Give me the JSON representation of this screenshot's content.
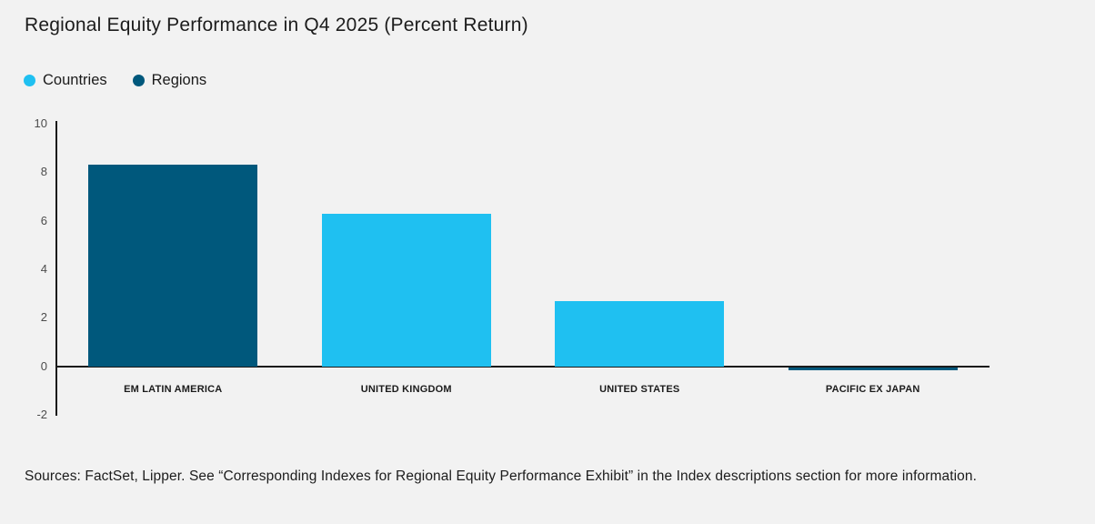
{
  "page": {
    "background_color": "#f2f2f2"
  },
  "header": {
    "title": "Regional Equity Performance in Q4 2025 (Percent Return)"
  },
  "legend": [
    {
      "label": "Countries",
      "color": "#1fc0f1"
    },
    {
      "label": "Regions",
      "color": "#00587c"
    }
  ],
  "chart_data": {
    "type": "bar",
    "title": "Regional Equity Performance in Q4 2025 (Percent Return)",
    "categories": [
      "EM LATIN AMERICA",
      "UNITED KINGDOM",
      "UNITED STATES",
      "PACIFIC EX JAPAN"
    ],
    "values": [
      8.3,
      6.3,
      2.7,
      -0.1
    ],
    "series_membership": [
      "Regions",
      "Countries",
      "Countries",
      "Regions"
    ],
    "bar_colors": [
      "#00587c",
      "#1fc0f1",
      "#1fc0f1",
      "#00587c"
    ],
    "yticks": [
      10,
      8,
      6,
      4,
      2,
      0,
      -2
    ],
    "ylim": [
      -2,
      10
    ],
    "xlabel": "",
    "ylabel": "",
    "legend_entries": [
      "Countries",
      "Regions"
    ],
    "legend_position": "top-left",
    "grid": false,
    "axis_color": "#1a1a1a"
  },
  "footer": {
    "source_text": "Sources: FactSet, Lipper. See “Corresponding Indexes for Regional Equity Performance Exhibit” in the Index descriptions section for more information."
  }
}
